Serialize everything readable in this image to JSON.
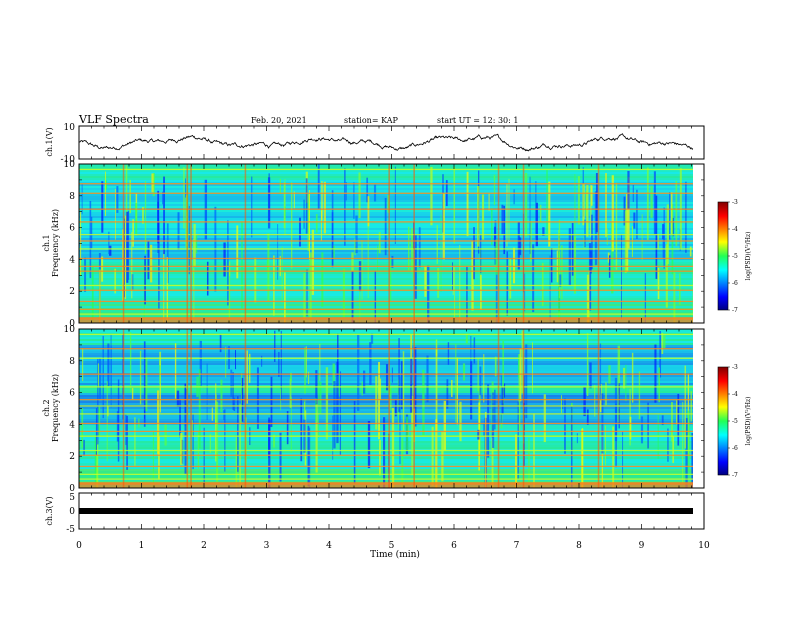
{
  "header": {
    "title": "VLF Spectra",
    "date": "Feb. 20, 2021",
    "station": "station= KAP",
    "start_ut": "start  UT =  12: 30: 1"
  },
  "chart_data": [
    {
      "type": "line",
      "ylabel": "ch.1(V)",
      "ylim": [
        -10,
        10
      ],
      "y_ticks": [
        "10",
        "-10"
      ],
      "xlim": [
        0,
        10
      ]
    },
    {
      "type": "heatmap",
      "ylabel_top": "ch.1",
      "ylabel": "Frequency (kHz)",
      "ylim": [
        0,
        10
      ],
      "y_ticks": [
        "0",
        "2",
        "4",
        "6",
        "8",
        "10"
      ],
      "colorbar": {
        "label": "log(PSD)(V²/Hz)",
        "range": [
          -7,
          -3
        ],
        "ticks": [
          "-3",
          "-4",
          "-5",
          "-6",
          "-7"
        ]
      }
    },
    {
      "type": "heatmap",
      "ylabel_top": "ch.2",
      "ylabel": "Frequency (kHz)",
      "ylim": [
        0,
        10
      ],
      "y_ticks": [
        "0",
        "2",
        "4",
        "6",
        "8",
        "10"
      ],
      "colorbar": {
        "label": "log(PSD)(V²/Hz)",
        "range": [
          -7,
          -3
        ],
        "ticks": [
          "-3",
          "-4",
          "-5",
          "-6",
          "-7"
        ]
      }
    },
    {
      "type": "line",
      "ylabel": "ch.3(V)",
      "ylim": [
        -5,
        5
      ],
      "y_ticks": [
        "5",
        "0",
        "-5"
      ],
      "xlim": [
        0,
        10
      ]
    }
  ],
  "xaxis": {
    "label": "Time (min)",
    "ticks": [
      "0",
      "1",
      "2",
      "3",
      "4",
      "5",
      "6",
      "7",
      "8",
      "9",
      "10"
    ],
    "range": [
      0,
      10
    ]
  }
}
